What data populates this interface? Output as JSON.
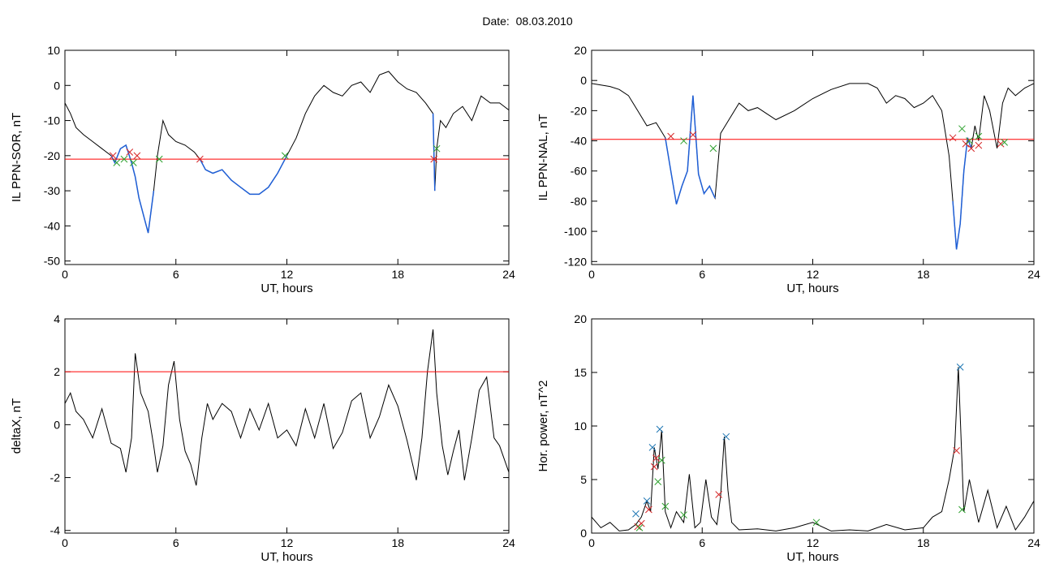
{
  "figure_title": "Date:  08.03.2010",
  "colors": {
    "trace": "#000000",
    "threshold": "#ff0000",
    "highlight": "#1f5fd6",
    "marker_red": "#d62728",
    "marker_green": "#2ca02c",
    "marker_blue": "#1f77b4"
  },
  "chart_data": [
    {
      "id": "ppn-sor",
      "type": "line",
      "xlabel": "UT, hours",
      "ylabel": "IL PPN-SOR, nT",
      "xlim": [
        0,
        24
      ],
      "ylim": [
        -51,
        10
      ],
      "xticks": [
        0,
        6,
        12,
        18,
        24
      ],
      "yticks": [
        10,
        0,
        -10,
        -20,
        -30,
        -40,
        -50
      ],
      "threshold": -21,
      "series": [
        {
          "x": [
            0,
            0.3,
            0.6,
            1.0,
            1.5,
            2.0,
            2.5,
            2.7,
            3.0,
            3.3,
            3.6,
            3.8,
            4.0,
            4.3,
            4.5,
            4.8,
            5.0,
            5.3,
            5.6,
            6.0,
            6.5,
            7.0,
            7.3,
            7.6,
            8.0,
            8.5,
            9.0,
            9.5,
            10.0,
            10.5,
            11.0,
            11.5,
            12.0,
            12.5,
            13.0,
            13.5,
            14.0,
            14.5,
            15.0,
            15.5,
            16.0,
            16.5,
            17.0,
            17.5,
            18.0,
            18.5,
            19.0,
            19.5,
            19.9,
            20.0,
            20.1,
            20.3,
            20.6,
            21.0,
            21.5,
            22.0,
            22.5,
            23.0,
            23.5,
            24.0
          ],
          "y": [
            -5,
            -8,
            -12,
            -14,
            -16,
            -18,
            -20,
            -22,
            -18,
            -17,
            -22,
            -26,
            -32,
            -38,
            -42,
            -30,
            -20,
            -10,
            -14,
            -16,
            -17,
            -19,
            -21,
            -24,
            -25,
            -24,
            -27,
            -29,
            -31,
            -31,
            -29,
            -25,
            -20,
            -15,
            -8,
            -3,
            0,
            -2,
            -3,
            0,
            1,
            -2,
            3,
            4,
            1,
            -1,
            -2,
            -5,
            -8,
            -30,
            -18,
            -10,
            -12,
            -8,
            -6,
            -10,
            -3,
            -5,
            -5,
            -7
          ]
        }
      ],
      "highlight_x": [
        [
          2.4,
          4.9
        ],
        [
          7.3,
          12.0
        ],
        [
          19.85,
          20.05
        ]
      ],
      "markers": {
        "red": [
          [
            2.6,
            -20
          ],
          [
            3.5,
            -19
          ],
          [
            3.9,
            -20
          ],
          [
            7.3,
            -21
          ],
          [
            19.95,
            -21
          ]
        ],
        "green": [
          [
            2.8,
            -22
          ],
          [
            3.2,
            -21
          ],
          [
            3.7,
            -22
          ],
          [
            5.1,
            -21
          ],
          [
            11.9,
            -20
          ],
          [
            20.1,
            -18
          ]
        ]
      }
    },
    {
      "id": "ppn-nal",
      "type": "line",
      "xlabel": "UT, hours",
      "ylabel": "IL PPN-NAL, nT",
      "xlim": [
        0,
        24
      ],
      "ylim": [
        -122,
        20
      ],
      "xticks": [
        0,
        6,
        12,
        18,
        24
      ],
      "yticks": [
        20,
        0,
        -20,
        -40,
        -60,
        -80,
        -100,
        -120
      ],
      "threshold": -39,
      "series": [
        {
          "x": [
            0,
            0.5,
            1.0,
            1.5,
            2.0,
            2.5,
            3.0,
            3.5,
            4.0,
            4.3,
            4.6,
            4.9,
            5.2,
            5.5,
            5.8,
            6.1,
            6.4,
            6.7,
            7.0,
            7.5,
            8.0,
            8.5,
            9.0,
            9.5,
            10.0,
            11.0,
            12.0,
            13.0,
            14.0,
            15.0,
            15.5,
            16.0,
            16.5,
            17.0,
            17.5,
            18.0,
            18.5,
            19.0,
            19.4,
            19.6,
            19.8,
            20.0,
            20.2,
            20.4,
            20.6,
            20.8,
            21.0,
            21.3,
            21.6,
            22.0,
            22.3,
            22.6,
            23.0,
            23.5,
            24.0
          ],
          "y": [
            -2,
            -3,
            -4,
            -6,
            -10,
            -20,
            -30,
            -28,
            -38,
            -60,
            -82,
            -70,
            -60,
            -10,
            -62,
            -75,
            -70,
            -78,
            -35,
            -25,
            -15,
            -20,
            -18,
            -22,
            -26,
            -20,
            -12,
            -6,
            -2,
            -2,
            -5,
            -15,
            -10,
            -12,
            -18,
            -15,
            -10,
            -20,
            -50,
            -80,
            -112,
            -95,
            -60,
            -38,
            -45,
            -30,
            -40,
            -10,
            -20,
            -45,
            -15,
            -5,
            -10,
            -5,
            -2
          ]
        }
      ],
      "highlight_x": [
        [
          4.0,
          6.7
        ],
        [
          19.5,
          20.6
        ]
      ],
      "markers": {
        "red": [
          [
            4.3,
            -37
          ],
          [
            5.5,
            -36
          ],
          [
            19.6,
            -38
          ],
          [
            20.3,
            -42
          ],
          [
            20.6,
            -45
          ],
          [
            21.0,
            -43
          ],
          [
            22.2,
            -42
          ]
        ],
        "green": [
          [
            5.0,
            -40
          ],
          [
            6.6,
            -45
          ],
          [
            20.1,
            -32
          ],
          [
            20.5,
            -40
          ],
          [
            21.0,
            -37
          ],
          [
            22.4,
            -41
          ]
        ]
      }
    },
    {
      "id": "deltax",
      "type": "line",
      "xlabel": "UT, hours",
      "ylabel": "deltaX, nT",
      "xlim": [
        0,
        24
      ],
      "ylim": [
        -4.1,
        4
      ],
      "xticks": [
        0,
        6,
        12,
        18,
        24
      ],
      "yticks": [
        4,
        2,
        0,
        -2,
        -4
      ],
      "threshold": 2,
      "series": [
        {
          "x": [
            0,
            0.3,
            0.6,
            1.0,
            1.5,
            2.0,
            2.5,
            3.0,
            3.3,
            3.6,
            3.8,
            4.1,
            4.5,
            4.8,
            5.0,
            5.3,
            5.6,
            5.9,
            6.2,
            6.5,
            6.8,
            7.1,
            7.4,
            7.7,
            8.0,
            8.5,
            9.0,
            9.5,
            10.0,
            10.5,
            11.0,
            11.5,
            12.0,
            12.5,
            13.0,
            13.5,
            14.0,
            14.5,
            15.0,
            15.5,
            16.0,
            16.5,
            17.0,
            17.5,
            18.0,
            18.5,
            19.0,
            19.3,
            19.6,
            19.9,
            20.1,
            20.4,
            20.7,
            21.0,
            21.3,
            21.6,
            22.0,
            22.4,
            22.8,
            23.2,
            23.5,
            24.0
          ],
          "y": [
            0.8,
            1.2,
            0.5,
            0.2,
            -0.5,
            0.6,
            -0.7,
            -0.9,
            -1.8,
            -0.5,
            2.7,
            1.2,
            0.5,
            -0.8,
            -1.8,
            -0.8,
            1.5,
            2.4,
            0.2,
            -1.0,
            -1.5,
            -2.3,
            -0.5,
            0.8,
            0.2,
            0.8,
            0.5,
            -0.5,
            0.6,
            -0.2,
            0.8,
            -0.5,
            -0.2,
            -0.8,
            0.6,
            -0.5,
            0.8,
            -0.9,
            -0.3,
            0.9,
            1.2,
            -0.5,
            0.3,
            1.5,
            0.7,
            -0.6,
            -2.1,
            -0.5,
            2.0,
            3.6,
            1.2,
            -0.8,
            -1.9,
            -1.0,
            -0.2,
            -2.1,
            -0.5,
            1.3,
            1.8,
            -0.5,
            -0.8,
            -1.8
          ]
        }
      ]
    },
    {
      "id": "hor-power",
      "type": "line",
      "xlabel": "UT, hours",
      "ylabel": "Hor. power, nT^2",
      "xlim": [
        0,
        24
      ],
      "ylim": [
        0,
        20
      ],
      "xticks": [
        0,
        6,
        12,
        18,
        24
      ],
      "yticks": [
        0,
        5,
        10,
        15,
        20
      ],
      "series": [
        {
          "x": [
            0,
            0.5,
            1.0,
            1.5,
            2.0,
            2.4,
            2.7,
            3.0,
            3.2,
            3.4,
            3.6,
            3.8,
            4.0,
            4.3,
            4.6,
            5.0,
            5.3,
            5.6,
            5.9,
            6.2,
            6.5,
            6.8,
            7.0,
            7.2,
            7.4,
            7.6,
            8.0,
            9.0,
            10.0,
            11.0,
            12.0,
            13.0,
            14.0,
            15.0,
            16.0,
            17.0,
            18.0,
            18.5,
            19.0,
            19.4,
            19.7,
            19.9,
            20.2,
            20.5,
            21.0,
            21.5,
            22.0,
            22.5,
            23.0,
            23.5,
            24.0
          ],
          "y": [
            1.5,
            0.5,
            1.0,
            0.2,
            0.3,
            0.8,
            1.5,
            3.0,
            2.0,
            8.0,
            6.0,
            9.6,
            2.0,
            0.5,
            2.0,
            1.0,
            5.5,
            0.5,
            1.0,
            5.0,
            1.5,
            0.8,
            3.5,
            9.0,
            4.0,
            1.0,
            0.3,
            0.4,
            0.2,
            0.5,
            1.0,
            0.2,
            0.3,
            0.2,
            0.8,
            0.3,
            0.5,
            1.5,
            2.0,
            5.0,
            8.0,
            15.5,
            2.0,
            5.0,
            1.0,
            4.0,
            0.5,
            2.5,
            0.3,
            1.5,
            3.0
          ]
        }
      ],
      "markers": {
        "red": [
          [
            2.5,
            0.6
          ],
          [
            2.7,
            0.9
          ],
          [
            3.1,
            2.2
          ],
          [
            3.4,
            6.2
          ],
          [
            3.5,
            7.0
          ],
          [
            6.9,
            3.6
          ],
          [
            19.8,
            7.7
          ]
        ],
        "green": [
          [
            2.6,
            0.5
          ],
          [
            3.6,
            4.8
          ],
          [
            3.8,
            6.8
          ],
          [
            4.0,
            2.5
          ],
          [
            5.0,
            1.7
          ],
          [
            12.2,
            1.0
          ],
          [
            20.1,
            2.2
          ]
        ],
        "blue": [
          [
            2.4,
            1.8
          ],
          [
            3.0,
            3.0
          ],
          [
            3.3,
            8.0
          ],
          [
            3.7,
            9.7
          ],
          [
            7.3,
            9.0
          ],
          [
            20.0,
            15.5
          ]
        ]
      }
    }
  ]
}
